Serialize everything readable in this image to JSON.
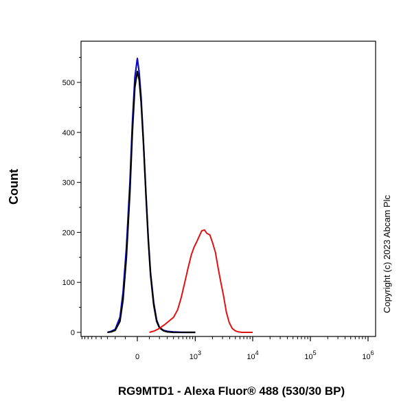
{
  "chart_data": {
    "type": "line",
    "title": "",
    "xlabel": "RG9MTD1 - Alexa Fluor® 488 (530/30 BP)",
    "ylabel": "Count",
    "xscale": "logicle",
    "ylim": [
      0,
      580
    ],
    "y_ticks": [
      0,
      100,
      200,
      300,
      400,
      500
    ],
    "x_ticks": [
      {
        "value": 0,
        "base": "0",
        "exp": ""
      },
      {
        "value": 1000,
        "base": "10",
        "exp": "3"
      },
      {
        "value": 10000,
        "base": "10",
        "exp": "4"
      },
      {
        "value": 100000,
        "base": "10",
        "exp": "5"
      },
      {
        "value": 1000000,
        "base": "10",
        "exp": "6"
      }
    ],
    "series": [
      {
        "color": "#0a0ac8",
        "x": [
          -300,
          -250,
          -200,
          -150,
          -120,
          -90,
          -60,
          -40,
          -20,
          0,
          15,
          30,
          50,
          70,
          90,
          110,
          140,
          170,
          200,
          250,
          300,
          400,
          600,
          1000
        ],
        "y": [
          0,
          2,
          6,
          30,
          80,
          170,
          300,
          420,
          510,
          548,
          520,
          470,
          380,
          280,
          190,
          120,
          60,
          25,
          10,
          4,
          2,
          1,
          0,
          0
        ]
      },
      {
        "color": "#000000",
        "x": [
          -300,
          -250,
          -200,
          -150,
          -120,
          -90,
          -60,
          -40,
          -20,
          0,
          15,
          30,
          50,
          70,
          90,
          110,
          140,
          170,
          200,
          250,
          300,
          400,
          600,
          1000
        ],
        "y": [
          0,
          1,
          4,
          22,
          65,
          150,
          280,
          400,
          490,
          522,
          505,
          460,
          375,
          275,
          185,
          115,
          55,
          22,
          9,
          3,
          1,
          0,
          0,
          0
        ]
      },
      {
        "color": "#e01010",
        "x": [
          100,
          150,
          200,
          260,
          320,
          400,
          480,
          560,
          650,
          750,
          850,
          950,
          1050,
          1150,
          1300,
          1450,
          1600,
          1800,
          2000,
          2250,
          2500,
          2800,
          3100,
          3500,
          3900,
          4400,
          5000,
          5600,
          6500,
          8000,
          10000
        ],
        "y": [
          0,
          3,
          8,
          15,
          22,
          30,
          45,
          70,
          100,
          130,
          155,
          170,
          180,
          190,
          203,
          205,
          198,
          195,
          180,
          160,
          130,
          100,
          75,
          40,
          20,
          8,
          3,
          1,
          0,
          0,
          0
        ]
      }
    ],
    "annotations": [
      "Copyright (c) 2023 Abcam Plc"
    ]
  }
}
